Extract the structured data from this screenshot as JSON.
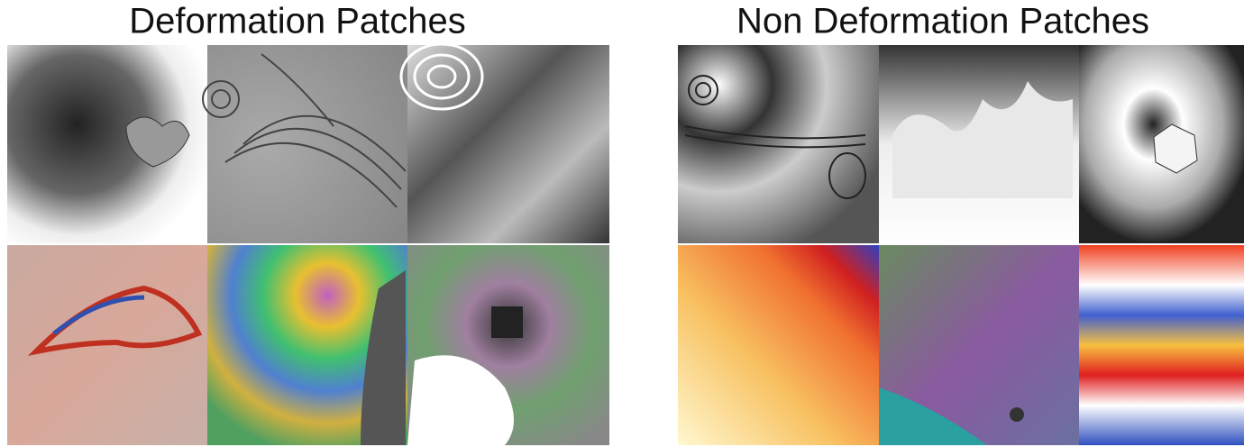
{
  "panels": [
    {
      "title": "Deformation Patches"
    },
    {
      "title": "Non Deformation Patches"
    }
  ]
}
